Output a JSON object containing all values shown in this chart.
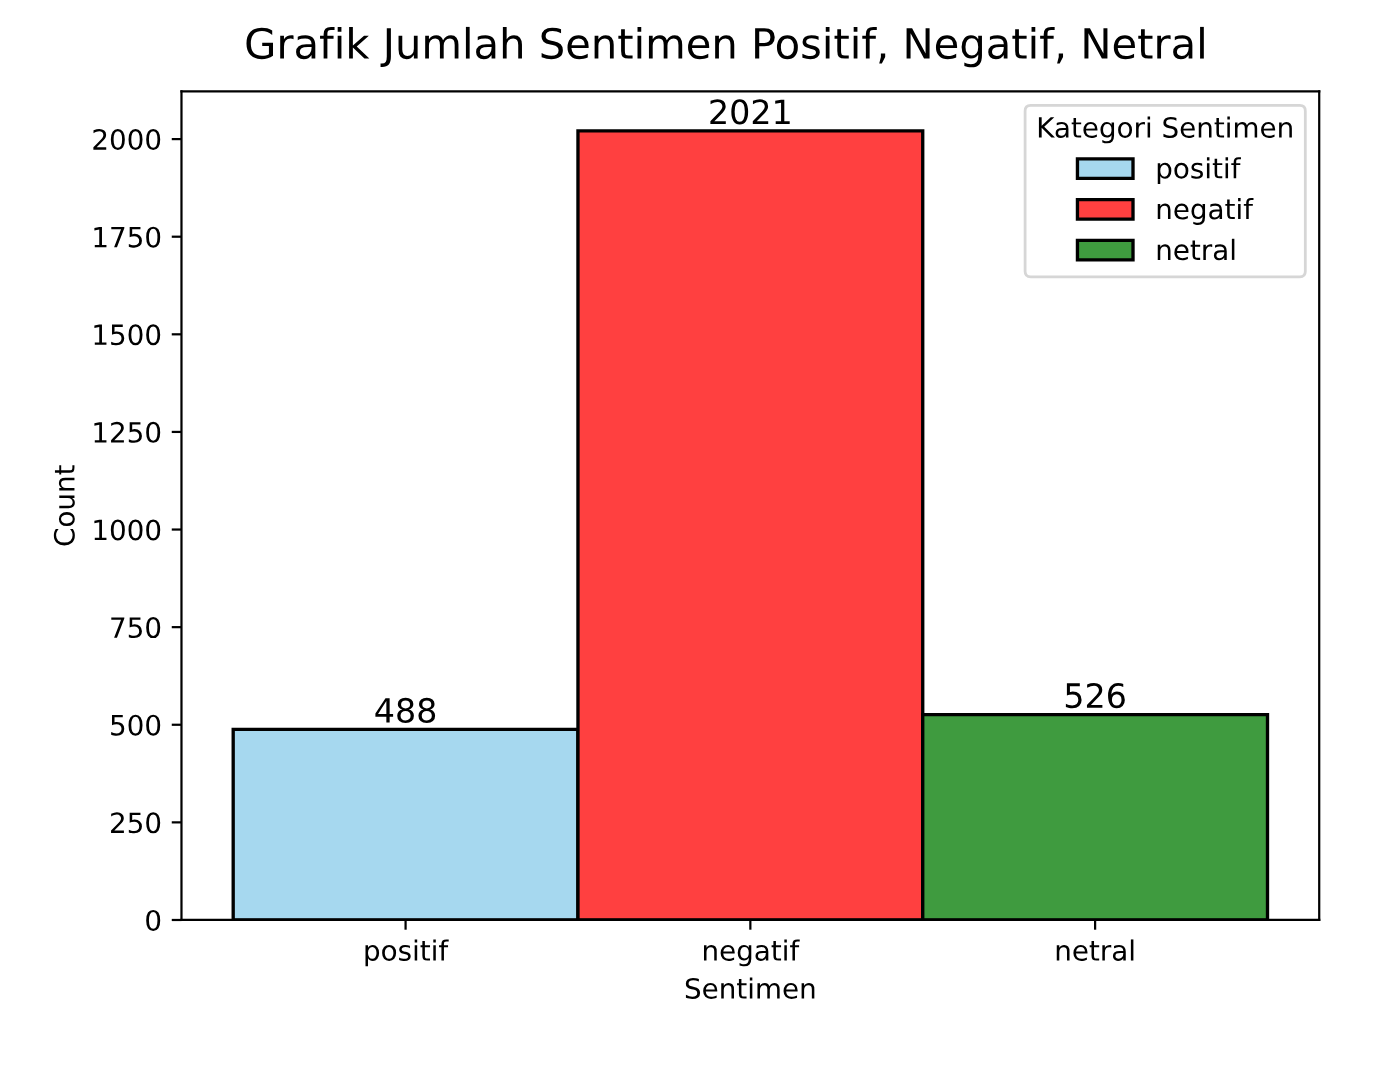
{
  "chart_data": {
    "type": "bar",
    "title": "Grafik Jumlah Sentimen Positif, Negatif, Netral",
    "xlabel": "Sentimen",
    "ylabel": "Count",
    "legend_title": "Kategori Sentimen",
    "categories": [
      "positif",
      "negatif",
      "netral"
    ],
    "series": [
      {
        "name": "positif",
        "color": "#a6d8ef",
        "values": [
          488,
          null,
          null
        ]
      },
      {
        "name": "negatif",
        "color": "#ff4040",
        "values": [
          null,
          2021,
          null
        ]
      },
      {
        "name": "netral",
        "color": "#3f9b3f",
        "values": [
          null,
          null,
          526
        ]
      }
    ],
    "ylim": [
      0,
      2122
    ],
    "yticks": [
      0,
      250,
      500,
      750,
      1000,
      1250,
      1500,
      1750,
      2000
    ],
    "data_labels": true,
    "legend": "top right",
    "grid": false
  }
}
